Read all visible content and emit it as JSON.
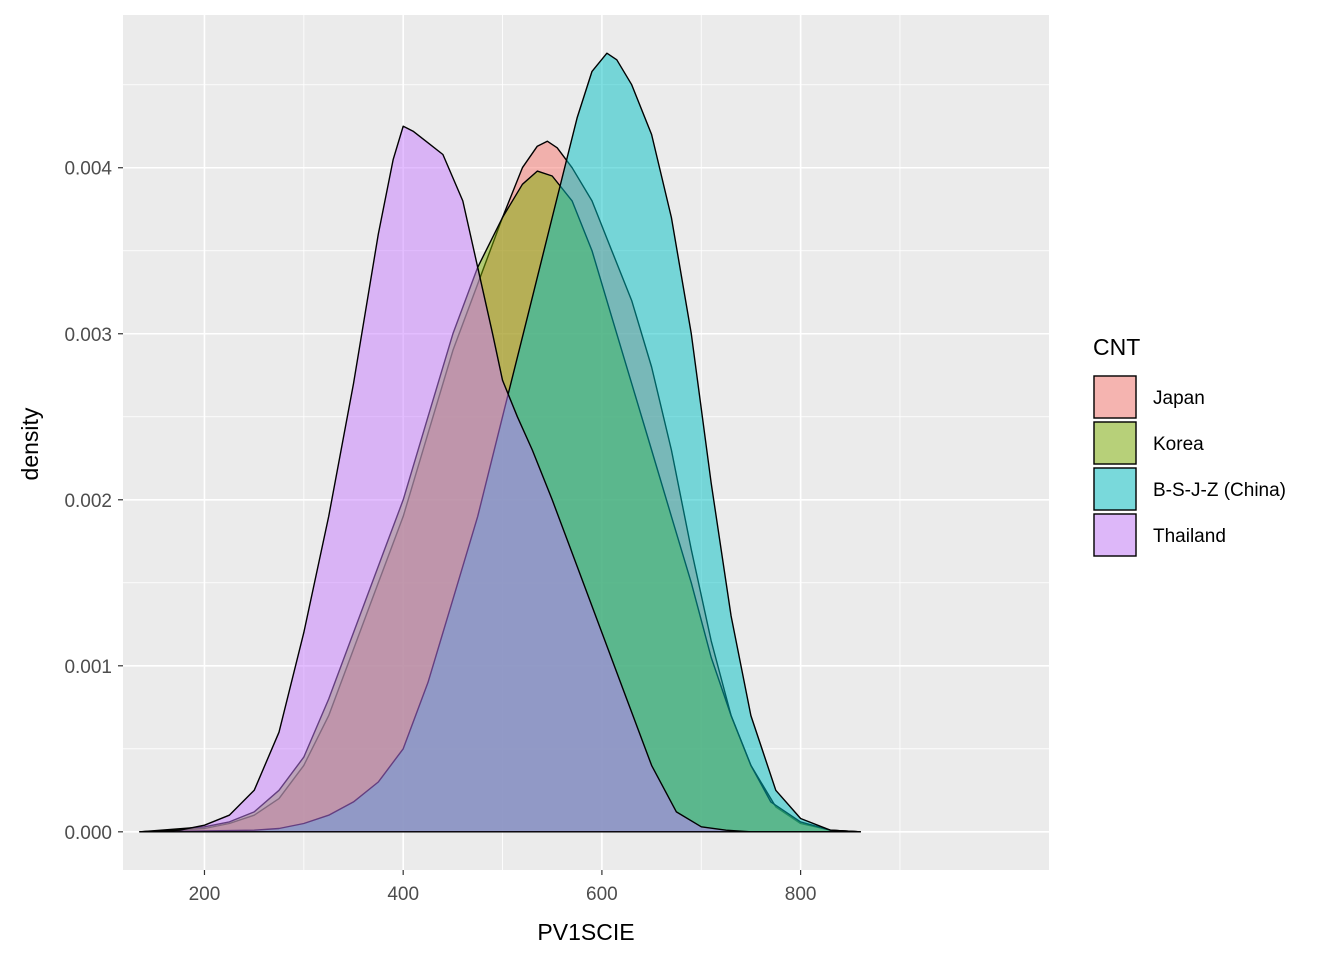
{
  "chart_data": {
    "type": "area",
    "chart_style": "density",
    "xlabel": "PV1SCIE",
    "ylabel": "density",
    "xlim": [
      118,
      1050
    ],
    "ylim": [
      -0.00023,
      0.00492
    ],
    "x_ticks": [
      200,
      400,
      600,
      800
    ],
    "x_tick_labels": [
      "200",
      "400",
      "600",
      "800"
    ],
    "y_ticks": [
      0.0,
      0.001,
      0.002,
      0.003,
      0.004
    ],
    "y_tick_labels": [
      "0.000",
      "0.001",
      "0.002",
      "0.003",
      "0.004"
    ],
    "grid": true,
    "fill_alpha": 0.5,
    "legend": {
      "title": "CNT",
      "position": "right"
    },
    "series": [
      {
        "name": "Japan",
        "color": "#F8766D",
        "x": [
          135,
          200,
          225,
          250,
          275,
          300,
          325,
          350,
          375,
          400,
          425,
          450,
          475,
          500,
          520,
          535,
          545,
          555,
          570,
          590,
          610,
          630,
          650,
          670,
          690,
          710,
          730,
          750,
          775,
          800,
          830,
          860
        ],
        "y": [
          0,
          2e-05,
          5e-05,
          0.0001,
          0.0002,
          0.0004,
          0.0007,
          0.0011,
          0.0015,
          0.0019,
          0.0024,
          0.0029,
          0.0033,
          0.0037,
          0.004,
          0.00413,
          0.00416,
          0.00412,
          0.004,
          0.0038,
          0.0035,
          0.0032,
          0.0028,
          0.0023,
          0.0017,
          0.00115,
          0.0007,
          0.0004,
          0.00015,
          5e-05,
          1e-05,
          0
        ]
      },
      {
        "name": "Korea",
        "color": "#7CAE00",
        "x": [
          135,
          200,
          225,
          250,
          275,
          300,
          325,
          350,
          375,
          400,
          425,
          450,
          475,
          500,
          520,
          535,
          550,
          570,
          590,
          610,
          630,
          650,
          670,
          690,
          710,
          730,
          750,
          770,
          800,
          830,
          860
        ],
        "y": [
          0,
          3e-05,
          6e-05,
          0.00012,
          0.00025,
          0.00045,
          0.0008,
          0.0012,
          0.0016,
          0.002,
          0.0025,
          0.003,
          0.0034,
          0.0037,
          0.0039,
          0.00398,
          0.00395,
          0.0038,
          0.0035,
          0.0031,
          0.0027,
          0.0023,
          0.0019,
          0.0015,
          0.00105,
          0.0007,
          0.0004,
          0.00018,
          6e-05,
          1e-05,
          0
        ]
      },
      {
        "name": "B-S-J-Z (China)",
        "color": "#00BFC4",
        "x": [
          135,
          250,
          275,
          300,
          325,
          350,
          375,
          400,
          425,
          450,
          475,
          500,
          525,
          550,
          575,
          590,
          605,
          615,
          630,
          650,
          670,
          690,
          710,
          730,
          750,
          775,
          800,
          830,
          860
        ],
        "y": [
          0,
          1e-05,
          2e-05,
          5e-05,
          0.0001,
          0.00018,
          0.0003,
          0.0005,
          0.0009,
          0.0014,
          0.0019,
          0.0025,
          0.0031,
          0.0037,
          0.0043,
          0.00458,
          0.00469,
          0.00465,
          0.0045,
          0.0042,
          0.0037,
          0.003,
          0.0021,
          0.0013,
          0.0007,
          0.00025,
          8e-05,
          1e-05,
          0
        ]
      },
      {
        "name": "Thailand",
        "color": "#C77CFF",
        "x": [
          135,
          175,
          200,
          225,
          250,
          275,
          300,
          325,
          350,
          375,
          390,
          400,
          410,
          425,
          440,
          460,
          475,
          490,
          500,
          515,
          530,
          550,
          575,
          600,
          625,
          650,
          675,
          700,
          725,
          750,
          800,
          860
        ],
        "y": [
          0,
          1e-05,
          4e-05,
          0.0001,
          0.00025,
          0.0006,
          0.0012,
          0.0019,
          0.0027,
          0.0036,
          0.00405,
          0.00425,
          0.00422,
          0.00415,
          0.00408,
          0.0038,
          0.0034,
          0.003,
          0.00272,
          0.0025,
          0.0023,
          0.002,
          0.0016,
          0.0012,
          0.0008,
          0.0004,
          0.00012,
          3e-05,
          1e-05,
          0,
          0,
          0
        ]
      }
    ]
  }
}
